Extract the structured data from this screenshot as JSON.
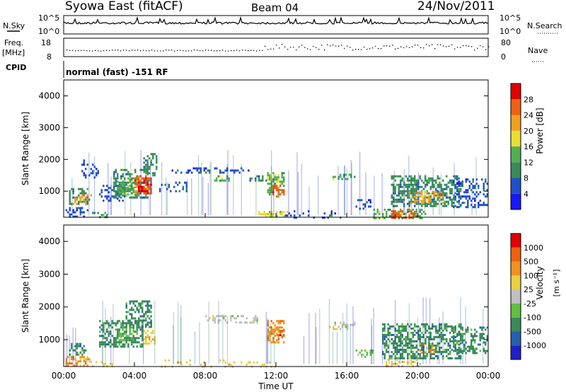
{
  "header": {
    "station": "Syowa East (fitACF)",
    "beam": "Beam 04",
    "date": "24/Nov/2011"
  },
  "top_panels": {
    "nsky_label": "N.Sky",
    "nsky_ticks": [
      "10^5",
      "10^0"
    ],
    "nsearch_label": "N.Search",
    "nsearch_ticks": [
      "10^5",
      "10^0"
    ],
    "freq_label": "Freq.",
    "freq_unit": "[MHz]",
    "freq_ticks": [
      "18",
      "8"
    ],
    "nave_label": "Nave",
    "nave_ticks": [
      "80",
      "0"
    ],
    "cpid_label": "CPID",
    "cpid_value": "normal (fast) -151 RF"
  },
  "colors": {
    "power": [
      "#1818ff",
      "#2050c8",
      "#3a8a5a",
      "#50b050",
      "#e8e030",
      "#f0a020",
      "#f06010",
      "#e00000"
    ],
    "velocity": [
      "#2020c8",
      "#2860b0",
      "#3a8a5a",
      "#60c040",
      "#c0c0c0",
      "#e8d040",
      "#f09020",
      "#f06010",
      "#e00000"
    ]
  },
  "chart_data": [
    {
      "type": "heatmap",
      "name": "power",
      "ylabel": "Slant Range [km]",
      "yticks": [
        "4000",
        "3000",
        "2000",
        "1000"
      ],
      "ylim": [
        180,
        4500
      ],
      "xlim_hours": [
        0,
        24
      ],
      "colorbar_label": "Power [dB]",
      "colorbar_ticks": [
        "28",
        "24",
        "20",
        "16",
        "12",
        "8",
        "4"
      ],
      "regions": [
        {
          "t0": 0.1,
          "t1": 1.4,
          "r0": 180,
          "r1": 500,
          "c": 1,
          "d": 0.35
        },
        {
          "t0": 0.3,
          "t1": 1.5,
          "r0": 600,
          "r1": 1100,
          "c": 2,
          "d": 0.5
        },
        {
          "t0": 0.5,
          "t1": 1.6,
          "r0": 600,
          "r1": 900,
          "c": 5,
          "d": 0.4
        },
        {
          "t0": 1.0,
          "t1": 2.0,
          "r0": 1400,
          "r1": 2000,
          "c": 1,
          "d": 0.3
        },
        {
          "t0": 1.5,
          "t1": 2.5,
          "r0": 180,
          "r1": 350,
          "c": 2,
          "d": 0.35
        },
        {
          "t0": 2.0,
          "t1": 3.5,
          "r0": 700,
          "r1": 1200,
          "c": 1,
          "d": 0.35
        },
        {
          "t0": 2.8,
          "t1": 4.8,
          "r0": 800,
          "r1": 1700,
          "c": 2,
          "d": 0.55
        },
        {
          "t0": 3.0,
          "t1": 4.2,
          "r0": 900,
          "r1": 1400,
          "c": 3,
          "d": 0.45
        },
        {
          "t0": 4.0,
          "t1": 5.0,
          "r0": 900,
          "r1": 1500,
          "c": 6,
          "d": 0.6
        },
        {
          "t0": 4.2,
          "t1": 4.8,
          "r0": 1000,
          "r1": 1300,
          "c": 7,
          "d": 0.5
        },
        {
          "t0": 4.5,
          "t1": 5.3,
          "r0": 1500,
          "r1": 2200,
          "c": 2,
          "d": 0.5
        },
        {
          "t0": 5.3,
          "t1": 7.0,
          "r0": 1000,
          "r1": 1300,
          "c": 1,
          "d": 0.3
        },
        {
          "t0": 6.0,
          "t1": 10.5,
          "r0": 1550,
          "r1": 1750,
          "c": 1,
          "d": 0.35
        },
        {
          "t0": 8.5,
          "t1": 9.5,
          "r0": 1350,
          "r1": 1500,
          "c": 3,
          "d": 0.5
        },
        {
          "t0": 10.5,
          "t1": 11.8,
          "r0": 1350,
          "r1": 1500,
          "c": 2,
          "d": 0.4
        },
        {
          "t0": 11.5,
          "t1": 12.5,
          "r0": 900,
          "r1": 1600,
          "c": 3,
          "d": 0.55
        },
        {
          "t0": 11.8,
          "t1": 12.4,
          "r0": 850,
          "r1": 1200,
          "c": 6,
          "d": 0.5
        },
        {
          "t0": 11.0,
          "t1": 12.8,
          "r0": 180,
          "r1": 380,
          "c": 4,
          "d": 0.45
        },
        {
          "t0": 12.5,
          "t1": 16.0,
          "r0": 180,
          "r1": 400,
          "c": 1,
          "d": 0.12
        },
        {
          "t0": 15.2,
          "t1": 16.5,
          "r0": 1350,
          "r1": 1550,
          "c": 3,
          "d": 0.45
        },
        {
          "t0": 16.5,
          "t1": 17.5,
          "r0": 450,
          "r1": 750,
          "c": 1,
          "d": 0.4
        },
        {
          "t0": 17.5,
          "t1": 20.5,
          "r0": 180,
          "r1": 450,
          "c": 3,
          "d": 0.5
        },
        {
          "t0": 18.5,
          "t1": 20.0,
          "r0": 180,
          "r1": 400,
          "c": 6,
          "d": 0.45
        },
        {
          "t0": 18.5,
          "t1": 22.5,
          "r0": 500,
          "r1": 1500,
          "c": 2,
          "d": 0.55
        },
        {
          "t0": 19.5,
          "t1": 21.5,
          "r0": 600,
          "r1": 1000,
          "c": 5,
          "d": 0.45
        },
        {
          "t0": 22.0,
          "t1": 24.0,
          "r0": 500,
          "r1": 1400,
          "c": 1,
          "d": 0.4
        }
      ]
    },
    {
      "type": "heatmap",
      "name": "velocity",
      "ylabel": "Slant Range [km]",
      "yticks": [
        "4000",
        "3000",
        "2000",
        "1000"
      ],
      "ylim": [
        180,
        4500
      ],
      "xlabel": "Time UT",
      "xticks": [
        "00:00",
        "04:00",
        "08:00",
        "12:00",
        "16:00",
        "20:00",
        "00:00"
      ],
      "colorbar_label": "Velocity",
      "colorbar_unit": "[m s⁻¹]",
      "colorbar_ticks": [
        "1000",
        "500",
        "100",
        "25",
        "-25",
        "-100",
        "-500",
        "-1000"
      ],
      "regions": [
        {
          "t0": 0.1,
          "t1": 1.5,
          "r0": 180,
          "r1": 500,
          "c": 6,
          "d": 0.5
        },
        {
          "t0": 0.3,
          "t1": 1.3,
          "r0": 500,
          "r1": 900,
          "c": 2,
          "d": 0.4
        },
        {
          "t0": 1.5,
          "t1": 2.8,
          "r0": 200,
          "r1": 350,
          "c": 5,
          "d": 0.3
        },
        {
          "t0": 2.0,
          "t1": 4.5,
          "r0": 800,
          "r1": 1600,
          "c": 2,
          "d": 0.55
        },
        {
          "t0": 3.0,
          "t1": 4.0,
          "r0": 1000,
          "r1": 1400,
          "c": 3,
          "d": 0.45
        },
        {
          "t0": 3.5,
          "t1": 5.0,
          "r0": 1400,
          "r1": 2200,
          "c": 2,
          "d": 0.5
        },
        {
          "t0": 4.5,
          "t1": 5.2,
          "r0": 900,
          "r1": 1300,
          "c": 5,
          "d": 0.4
        },
        {
          "t0": 5.0,
          "t1": 12.0,
          "r0": 180,
          "r1": 400,
          "c": 5,
          "d": 0.12
        },
        {
          "t0": 8.0,
          "t1": 11.0,
          "r0": 1550,
          "r1": 1750,
          "c": 4,
          "d": 0.35
        },
        {
          "t0": 11.5,
          "t1": 12.5,
          "r0": 900,
          "r1": 1600,
          "c": 6,
          "d": 0.6
        },
        {
          "t0": 12.0,
          "t1": 12.4,
          "r0": 1000,
          "r1": 1300,
          "c": 7,
          "d": 0.5
        },
        {
          "t0": 15.0,
          "t1": 16.5,
          "r0": 1350,
          "r1": 1550,
          "c": 4,
          "d": 0.4
        },
        {
          "t0": 16.5,
          "t1": 17.5,
          "r0": 450,
          "r1": 700,
          "c": 3,
          "d": 0.4
        },
        {
          "t0": 18.0,
          "t1": 22.5,
          "r0": 450,
          "r1": 1500,
          "c": 2,
          "d": 0.55
        },
        {
          "t0": 18.2,
          "t1": 20.2,
          "r0": 180,
          "r1": 420,
          "c": 5,
          "d": 0.35
        },
        {
          "t0": 20.0,
          "t1": 21.0,
          "r0": 600,
          "r1": 900,
          "c": 6,
          "d": 0.3
        },
        {
          "t0": 22.0,
          "t1": 24.0,
          "r0": 600,
          "r1": 1400,
          "c": 2,
          "d": 0.45
        }
      ]
    }
  ]
}
